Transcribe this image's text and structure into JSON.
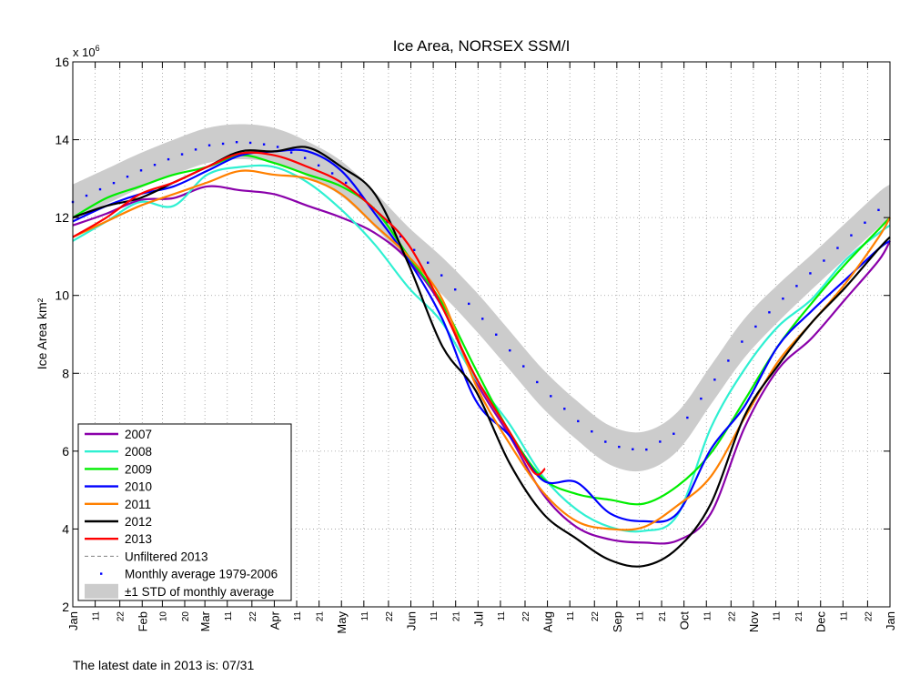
{
  "chart_data": {
    "type": "line",
    "title": "Ice Area, NORSEX SSM/I",
    "ylabel": "Ice Area km²",
    "y_multiplier": "x 10",
    "y_multiplier_exp": "6",
    "ylim": [
      2,
      16
    ],
    "yticks": [
      2,
      4,
      6,
      8,
      10,
      12,
      14,
      16
    ],
    "grid": true,
    "legend_placement": "bottom-left",
    "xticks": [
      {
        "label": "Jan",
        "date": "01-01",
        "major": true
      },
      {
        "label": "11",
        "date": "01-11"
      },
      {
        "label": "22",
        "date": "01-22"
      },
      {
        "label": "Feb",
        "date": "02-01",
        "major": true
      },
      {
        "label": "10",
        "date": "02-10"
      },
      {
        "label": "20",
        "date": "02-20"
      },
      {
        "label": "Mar",
        "date": "03-01",
        "major": true
      },
      {
        "label": "11",
        "date": "03-11"
      },
      {
        "label": "22",
        "date": "03-22"
      },
      {
        "label": "Apr",
        "date": "04-01",
        "major": true
      },
      {
        "label": "11",
        "date": "04-11"
      },
      {
        "label": "21",
        "date": "04-21"
      },
      {
        "label": "May",
        "date": "05-01",
        "major": true
      },
      {
        "label": "11",
        "date": "05-11"
      },
      {
        "label": "22",
        "date": "05-22"
      },
      {
        "label": "Jun",
        "date": "06-01",
        "major": true
      },
      {
        "label": "11",
        "date": "06-11"
      },
      {
        "label": "21",
        "date": "06-21"
      },
      {
        "label": "Jul",
        "date": "07-01",
        "major": true
      },
      {
        "label": "11",
        "date": "07-11"
      },
      {
        "label": "22",
        "date": "07-22"
      },
      {
        "label": "Aug",
        "date": "08-01",
        "major": true
      },
      {
        "label": "11",
        "date": "08-11"
      },
      {
        "label": "22",
        "date": "08-22"
      },
      {
        "label": "Sep",
        "date": "09-01",
        "major": true
      },
      {
        "label": "11",
        "date": "09-11"
      },
      {
        "label": "21",
        "date": "09-21"
      },
      {
        "label": "Oct",
        "date": "10-01",
        "major": true
      },
      {
        "label": "11",
        "date": "10-11"
      },
      {
        "label": "22",
        "date": "10-22"
      },
      {
        "label": "Nov",
        "date": "11-01",
        "major": true
      },
      {
        "label": "11",
        "date": "11-11"
      },
      {
        "label": "21",
        "date": "11-21"
      },
      {
        "label": "Dec",
        "date": "12-01",
        "major": true
      },
      {
        "label": "11",
        "date": "12-11"
      },
      {
        "label": "22",
        "date": "12-22"
      },
      {
        "label": "Jan",
        "date": "01-01",
        "major": true
      }
    ],
    "x": [
      "01-01",
      "01-16",
      "01-31",
      "02-15",
      "03-02",
      "03-17",
      "04-01",
      "04-16",
      "05-01",
      "05-16",
      "05-31",
      "06-15",
      "06-30",
      "07-15",
      "07-30",
      "08-14",
      "08-29",
      "09-13",
      "09-28",
      "10-13",
      "10-28",
      "11-12",
      "11-27",
      "12-12",
      "12-27",
      "01-01"
    ],
    "series": [
      {
        "name": "2007",
        "color": "#8a00aa",
        "values": [
          11.8,
          12.1,
          12.45,
          12.5,
          12.8,
          12.7,
          12.6,
          12.3,
          12.0,
          11.6,
          10.9,
          9.7,
          7.8,
          6.4,
          4.9,
          4.05,
          3.73,
          3.65,
          3.7,
          4.4,
          6.6,
          8.1,
          8.9,
          9.9,
          10.9,
          11.4
        ]
      },
      {
        "name": "2008",
        "color": "#2ff0d2",
        "values": [
          11.4,
          11.9,
          12.4,
          12.3,
          13.1,
          13.3,
          13.3,
          12.9,
          12.2,
          11.3,
          10.2,
          9.3,
          7.85,
          6.7,
          5.35,
          4.5,
          4.05,
          3.95,
          4.35,
          6.6,
          8.1,
          9.2,
          9.9,
          10.9,
          11.6,
          11.8
        ]
      },
      {
        "name": "2009",
        "color": "#00ee00",
        "values": [
          12.0,
          12.5,
          12.8,
          13.1,
          13.3,
          13.6,
          13.4,
          13.1,
          12.8,
          12.2,
          11.0,
          9.8,
          8.1,
          6.5,
          5.3,
          4.9,
          4.75,
          4.65,
          5.1,
          5.95,
          7.3,
          8.7,
          9.8,
          10.8,
          11.7,
          12.0
        ]
      },
      {
        "name": "2010",
        "color": "#0000ff",
        "values": [
          11.9,
          12.3,
          12.6,
          12.8,
          13.2,
          13.6,
          13.7,
          13.7,
          13.2,
          12.1,
          10.9,
          9.4,
          7.3,
          6.4,
          5.25,
          5.2,
          4.4,
          4.2,
          4.4,
          6.05,
          7.15,
          8.7,
          9.6,
          10.4,
          11.2,
          11.4
        ]
      },
      {
        "name": "2011",
        "color": "#ff8000",
        "values": [
          11.5,
          11.9,
          12.3,
          12.6,
          12.9,
          13.2,
          13.1,
          13.0,
          12.6,
          11.8,
          11.0,
          9.9,
          7.7,
          6.2,
          4.95,
          4.2,
          4.0,
          4.05,
          4.6,
          5.35,
          6.85,
          8.3,
          9.3,
          10.3,
          11.5,
          12.0
        ]
      },
      {
        "name": "2012",
        "color": "#000000",
        "values": [
          12.0,
          12.3,
          12.5,
          12.9,
          13.3,
          13.7,
          13.7,
          13.8,
          13.3,
          12.6,
          10.8,
          8.7,
          7.55,
          5.7,
          4.4,
          3.75,
          3.2,
          3.05,
          3.5,
          4.65,
          6.9,
          8.2,
          9.3,
          10.2,
          11.2,
          11.5
        ]
      },
      {
        "name": "2013",
        "color": "#ff0000",
        "x": [
          "01-01",
          "01-16",
          "01-31",
          "02-15",
          "03-02",
          "03-17",
          "04-01",
          "04-16",
          "05-01",
          "05-16",
          "05-31",
          "06-15",
          "06-30",
          "07-15",
          "07-26",
          "07-31"
        ],
        "values": [
          11.5,
          12.0,
          12.6,
          12.9,
          13.3,
          13.65,
          13.6,
          13.3,
          12.9,
          12.2,
          11.3,
          9.7,
          7.9,
          6.5,
          5.45,
          5.55
        ]
      },
      {
        "name": "Unfiltered 2013",
        "color": "#808080",
        "style": "dashed",
        "x": [
          "01-01",
          "01-16",
          "01-31",
          "02-15",
          "03-02",
          "03-17",
          "04-01",
          "04-16",
          "05-01",
          "05-16",
          "05-31",
          "06-15",
          "06-30",
          "07-15",
          "07-26",
          "07-31"
        ],
        "values": [
          11.5,
          12.0,
          12.6,
          12.9,
          13.3,
          13.65,
          13.6,
          13.3,
          12.9,
          12.2,
          11.3,
          9.7,
          7.9,
          6.5,
          5.45,
          5.55
        ]
      }
    ],
    "average": {
      "name": "Monthly average 1979-2006",
      "color": "#0000ff",
      "values": [
        12.4,
        12.8,
        13.2,
        13.55,
        13.85,
        13.95,
        13.85,
        13.5,
        13.0,
        12.2,
        11.3,
        10.5,
        9.6,
        8.6,
        7.6,
        6.8,
        6.15,
        6.0,
        6.5,
        7.7,
        8.9,
        9.8,
        10.6,
        11.4,
        12.2,
        12.4
      ]
    },
    "std_band": {
      "name": "±1 STD of monthly average",
      "color": "#cccccc",
      "std": [
        0.45,
        0.45,
        0.45,
        0.45,
        0.45,
        0.45,
        0.45,
        0.45,
        0.45,
        0.45,
        0.45,
        0.48,
        0.5,
        0.5,
        0.5,
        0.5,
        0.5,
        0.5,
        0.5,
        0.5,
        0.5,
        0.48,
        0.45,
        0.45,
        0.45,
        0.45
      ]
    }
  },
  "footer": "The latest date in 2013 is: 07/31"
}
